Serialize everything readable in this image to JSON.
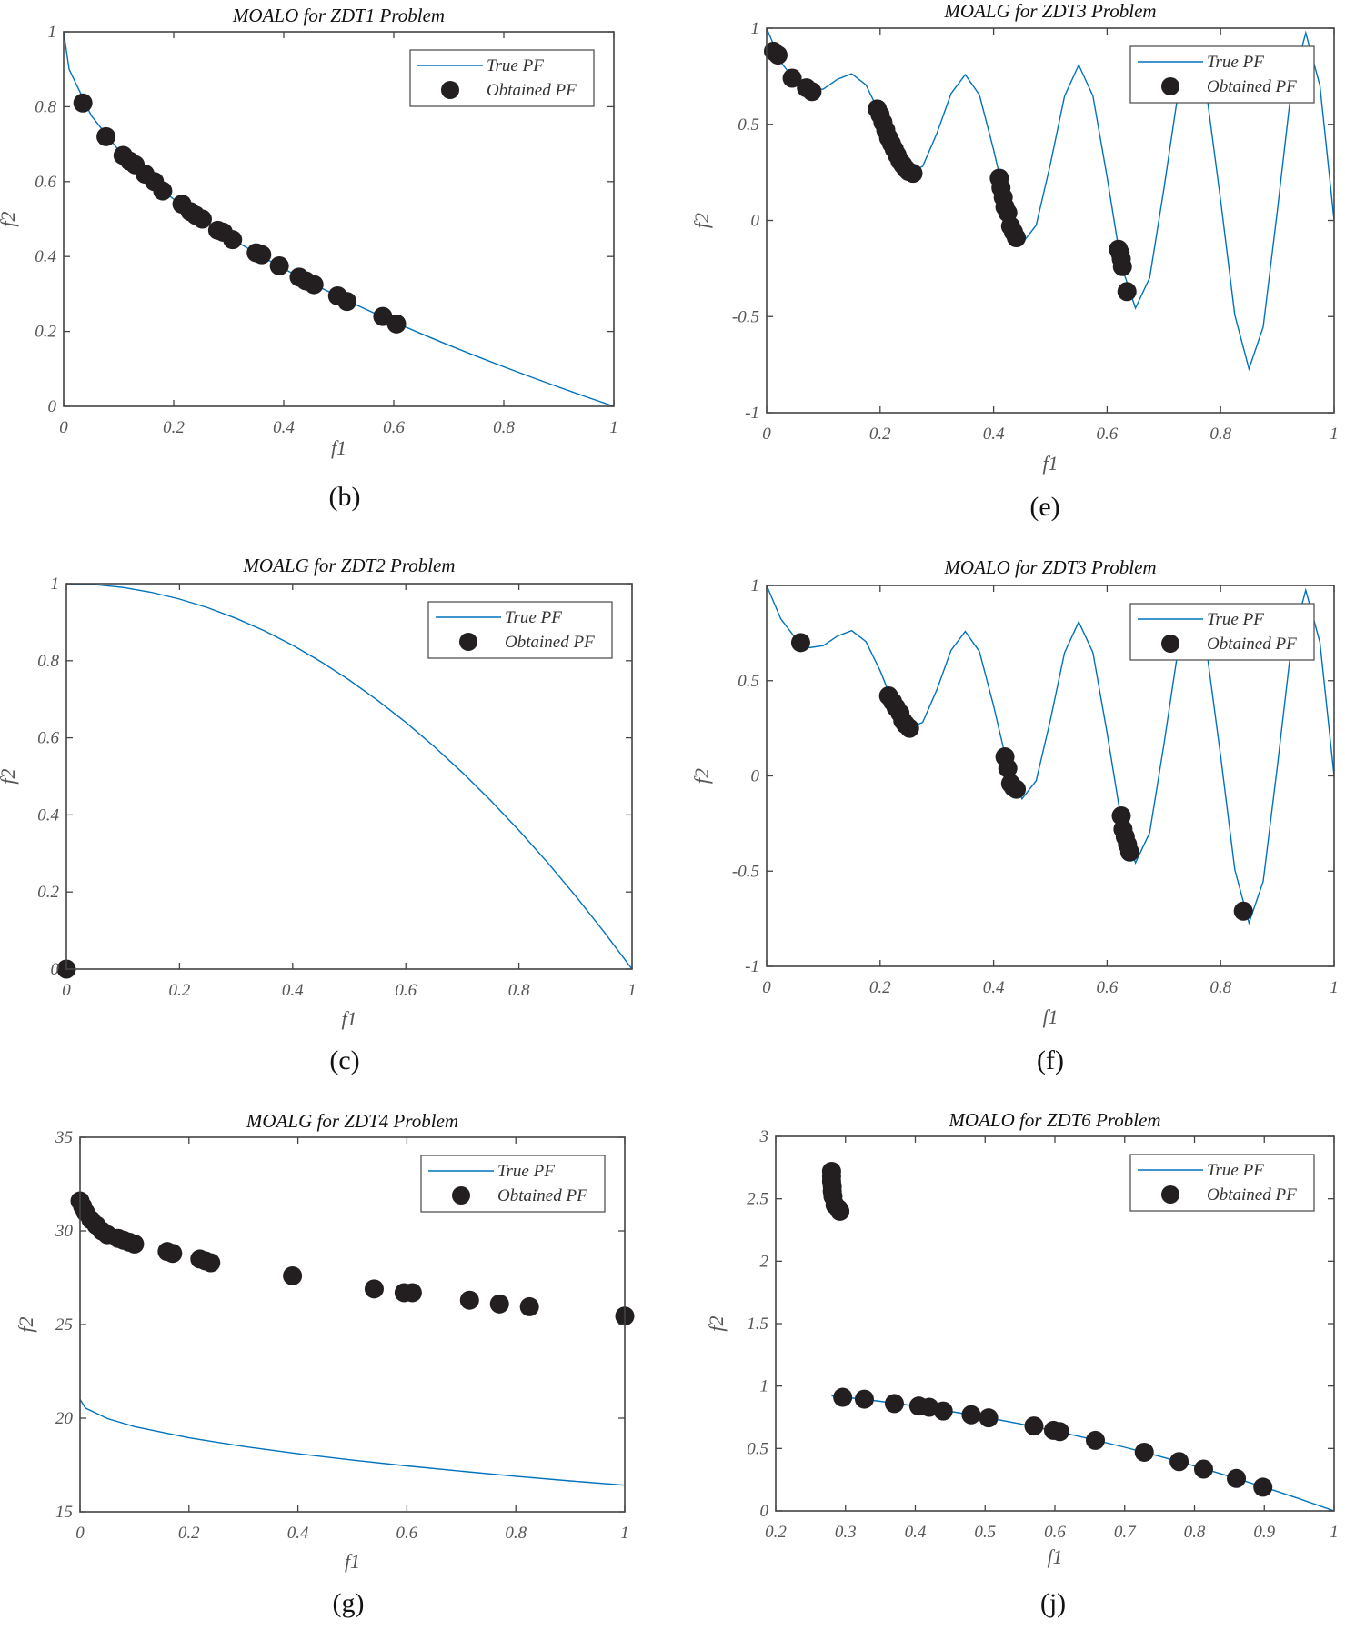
{
  "chart_data": [
    {
      "type": "line+scatter",
      "panel_label": "(b)",
      "title": "MOALO for ZDT1 Problem",
      "xlabel": "f1",
      "ylabel": "f2",
      "xlim": [
        0,
        1
      ],
      "ylim": [
        0,
        1
      ],
      "xtick_labels": [
        "0",
        "0.2",
        "0.4",
        "0.6",
        "0.8",
        "1"
      ],
      "ytick_labels": [
        "0",
        "0.2",
        "0.4",
        "0.6",
        "0.8",
        "1"
      ],
      "grid": false,
      "legend": {
        "position": "top-right",
        "entries": [
          "True PF",
          "Obtained PF"
        ]
      },
      "series": [
        {
          "name": "True PF",
          "kind": "line",
          "color": "#0072BD",
          "x": [
            0,
            0.01,
            0.05,
            0.1,
            0.15,
            0.2,
            0.25,
            0.3,
            0.35,
            0.4,
            0.45,
            0.5,
            0.55,
            0.6,
            0.65,
            0.7,
            0.75,
            0.8,
            0.85,
            0.9,
            0.95,
            1
          ],
          "y": [
            1,
            0.9,
            0.7764,
            0.6838,
            0.6127,
            0.5528,
            0.5,
            0.4523,
            0.4084,
            0.3675,
            0.3292,
            0.2929,
            0.2584,
            0.2254,
            0.1938,
            0.1633,
            0.134,
            0.1056,
            0.078,
            0.0513,
            0.0253,
            0
          ]
        },
        {
          "name": "Obtained PF",
          "kind": "scatter",
          "color": "#231F20",
          "x": [
            0.035,
            0.077,
            0.108,
            0.12,
            0.13,
            0.148,
            0.165,
            0.18,
            0.215,
            0.23,
            0.24,
            0.252,
            0.28,
            0.29,
            0.307,
            0.35,
            0.36,
            0.392,
            0.428,
            0.44,
            0.455,
            0.498,
            0.515,
            0.58,
            0.605
          ],
          "y": [
            0.81,
            0.72,
            0.67,
            0.655,
            0.645,
            0.62,
            0.6,
            0.575,
            0.54,
            0.52,
            0.51,
            0.5,
            0.47,
            0.465,
            0.445,
            0.41,
            0.405,
            0.375,
            0.345,
            0.335,
            0.325,
            0.295,
            0.28,
            0.24,
            0.22
          ]
        }
      ]
    },
    {
      "type": "line+scatter",
      "panel_label": "(e)",
      "title": "MOALG for ZDT3 Problem",
      "xlabel": "f1",
      "ylabel": "f2",
      "xlim": [
        0,
        1
      ],
      "ylim": [
        -1,
        1
      ],
      "xtick_labels": [
        "0",
        "0.2",
        "0.4",
        "0.6",
        "0.8",
        "1"
      ],
      "ytick_labels": [
        "-1",
        "-0.5",
        "0",
        "0.5",
        "1"
      ],
      "grid": false,
      "legend": {
        "position": "top-right",
        "entries": [
          "True PF",
          "Obtained PF"
        ]
      },
      "series": [
        {
          "name": "True PF",
          "kind": "line",
          "color": "#0072BD",
          "x": [
            0,
            0.025,
            0.05,
            0.075,
            0.1,
            0.125,
            0.15,
            0.175,
            0.2,
            0.225,
            0.25,
            0.275,
            0.3,
            0.325,
            0.35,
            0.375,
            0.4,
            0.425,
            0.45,
            0.475,
            0.5,
            0.525,
            0.55,
            0.575,
            0.6,
            0.625,
            0.65,
            0.675,
            0.7,
            0.725,
            0.75,
            0.775,
            0.8,
            0.825,
            0.85,
            0.875,
            0.9,
            0.925,
            0.95,
            0.975,
            1
          ],
          "y": [
            1,
            0.8242,
            0.7264,
            0.6731,
            0.6838,
            0.7348,
            0.7627,
            0.7054,
            0.5528,
            0.3666,
            0.25,
            0.2811,
            0.4523,
            0.6597,
            0.7584,
            0.6528,
            0.3675,
            0.0476,
            -0.1208,
            -0.0251,
            0.2929,
            0.6466,
            0.8084,
            0.6483,
            0.2254,
            -0.2325,
            -0.4562,
            -0.2989,
            0.1633,
            0.6611,
            0.884,
            0.6677,
            0.1056,
            -0.4917,
            -0.772,
            -0.5541,
            0.0513,
            0.6923,
            0.9753,
            0.702,
            0
          ]
        },
        {
          "name": "Obtained PF",
          "kind": "scatter",
          "color": "#231F20",
          "x": [
            0.012,
            0.02,
            0.045,
            0.07,
            0.08,
            0.195,
            0.2,
            0.205,
            0.21,
            0.215,
            0.22,
            0.225,
            0.23,
            0.235,
            0.24,
            0.245,
            0.25,
            0.258,
            0.41,
            0.413,
            0.417,
            0.42,
            0.425,
            0.43,
            0.435,
            0.44,
            0.62,
            0.623,
            0.625,
            0.627,
            0.635
          ],
          "y": [
            0.88,
            0.86,
            0.74,
            0.69,
            0.67,
            0.58,
            0.55,
            0.51,
            0.47,
            0.43,
            0.4,
            0.37,
            0.34,
            0.31,
            0.29,
            0.27,
            0.255,
            0.245,
            0.22,
            0.17,
            0.12,
            0.07,
            0.04,
            -0.03,
            -0.06,
            -0.09,
            -0.15,
            -0.17,
            -0.2,
            -0.24,
            -0.37
          ]
        }
      ]
    },
    {
      "type": "line+scatter",
      "panel_label": "(c)",
      "title": "MOALG for ZDT2 Problem",
      "xlabel": "f1",
      "ylabel": "f2",
      "xlim": [
        0,
        1
      ],
      "ylim": [
        0,
        1
      ],
      "xtick_labels": [
        "0",
        "0.2",
        "0.4",
        "0.6",
        "0.8",
        "1"
      ],
      "ytick_labels": [
        "0",
        "0.2",
        "0.4",
        "0.6",
        "0.8",
        "1"
      ],
      "grid": false,
      "legend": {
        "position": "top-right",
        "entries": [
          "True PF",
          "Obtained PF"
        ]
      },
      "series": [
        {
          "name": "True PF",
          "kind": "line",
          "color": "#0072BD",
          "x": [
            0,
            0.05,
            0.1,
            0.15,
            0.2,
            0.25,
            0.3,
            0.35,
            0.4,
            0.45,
            0.5,
            0.55,
            0.6,
            0.65,
            0.7,
            0.75,
            0.8,
            0.85,
            0.9,
            0.95,
            1
          ],
          "y": [
            1,
            0.9975,
            0.99,
            0.9775,
            0.96,
            0.9375,
            0.91,
            0.8775,
            0.84,
            0.7975,
            0.75,
            0.6975,
            0.64,
            0.5775,
            0.51,
            0.4375,
            0.36,
            0.2775,
            0.19,
            0.0975,
            0
          ]
        },
        {
          "name": "Obtained PF",
          "kind": "scatter",
          "color": "#231F20",
          "x": [
            0
          ],
          "y": [
            0
          ]
        }
      ]
    },
    {
      "type": "line+scatter",
      "panel_label": "(f)",
      "title": "MOALO for ZDT3 Problem",
      "xlabel": "f1",
      "ylabel": "f2",
      "xlim": [
        0,
        1
      ],
      "ylim": [
        -1,
        1
      ],
      "xtick_labels": [
        "0",
        "0.2",
        "0.4",
        "0.6",
        "0.8",
        "1"
      ],
      "ytick_labels": [
        "-1",
        "-0.5",
        "0",
        "0.5",
        "1"
      ],
      "grid": false,
      "legend": {
        "position": "top-right",
        "entries": [
          "True PF",
          "Obtained PF"
        ]
      },
      "series": [
        {
          "name": "True PF",
          "kind": "line",
          "color": "#0072BD",
          "x": [
            0,
            0.025,
            0.05,
            0.075,
            0.1,
            0.125,
            0.15,
            0.175,
            0.2,
            0.225,
            0.25,
            0.275,
            0.3,
            0.325,
            0.35,
            0.375,
            0.4,
            0.425,
            0.45,
            0.475,
            0.5,
            0.525,
            0.55,
            0.575,
            0.6,
            0.625,
            0.65,
            0.675,
            0.7,
            0.725,
            0.75,
            0.775,
            0.8,
            0.825,
            0.85,
            0.875,
            0.9,
            0.925,
            0.95,
            0.975,
            1
          ],
          "y": [
            1,
            0.8242,
            0.7264,
            0.6731,
            0.6838,
            0.7348,
            0.7627,
            0.7054,
            0.5528,
            0.3666,
            0.25,
            0.2811,
            0.4523,
            0.6597,
            0.7584,
            0.6528,
            0.3675,
            0.0476,
            -0.1208,
            -0.0251,
            0.2929,
            0.6466,
            0.8084,
            0.6483,
            0.2254,
            -0.2325,
            -0.4562,
            -0.2989,
            0.1633,
            0.6611,
            0.884,
            0.6677,
            0.1056,
            -0.4917,
            -0.772,
            -0.5541,
            0.0513,
            0.6923,
            0.9753,
            0.702,
            0
          ]
        },
        {
          "name": "Obtained PF",
          "kind": "scatter",
          "color": "#231F20",
          "x": [
            0.06,
            0.215,
            0.222,
            0.228,
            0.235,
            0.24,
            0.245,
            0.252,
            0.42,
            0.425,
            0.43,
            0.435,
            0.44,
            0.625,
            0.628,
            0.632,
            0.636,
            0.64,
            0.84
          ],
          "y": [
            0.7,
            0.42,
            0.39,
            0.36,
            0.33,
            0.29,
            0.27,
            0.25,
            0.1,
            0.04,
            -0.04,
            -0.06,
            -0.07,
            -0.21,
            -0.28,
            -0.32,
            -0.36,
            -0.4,
            -0.71
          ]
        }
      ]
    },
    {
      "type": "line+scatter",
      "panel_label": "(g)",
      "title": "MOALG for ZDT4 Problem",
      "xlabel": "f1",
      "ylabel": "f2",
      "xlim": [
        0,
        1
      ],
      "ylim": [
        15,
        35
      ],
      "xtick_labels": [
        "0",
        "0.2",
        "0.4",
        "0.6",
        "0.8",
        "1"
      ],
      "ytick_labels": [
        "15",
        "20",
        "25",
        "30",
        "35"
      ],
      "grid": false,
      "legend": {
        "position": "top-right",
        "entries": [
          "True PF",
          "Obtained PF"
        ]
      },
      "series": [
        {
          "name": "True PF",
          "kind": "line",
          "color": "#0072BD",
          "x": [
            0,
            0.01,
            0.05,
            0.1,
            0.2,
            0.3,
            0.4,
            0.5,
            0.6,
            0.7,
            0.8,
            0.9,
            1
          ],
          "y": [
            21,
            20.54,
            19.98,
            19.55,
            18.95,
            18.49,
            18.1,
            17.76,
            17.45,
            17.17,
            16.9,
            16.65,
            16.42
          ]
        },
        {
          "name": "Obtained PF",
          "kind": "scatter",
          "color": "#231F20",
          "x": [
            0,
            0.005,
            0.01,
            0.02,
            0.03,
            0.04,
            0.05,
            0.07,
            0.08,
            0.09,
            0.1,
            0.16,
            0.17,
            0.22,
            0.23,
            0.24,
            0.39,
            0.54,
            0.595,
            0.61,
            0.715,
            0.77,
            0.825,
            1
          ],
          "y": [
            31.6,
            31.3,
            31.0,
            30.6,
            30.3,
            30.0,
            29.8,
            29.6,
            29.5,
            29.4,
            29.3,
            28.9,
            28.8,
            28.5,
            28.4,
            28.3,
            27.6,
            26.9,
            26.7,
            26.7,
            26.3,
            26.1,
            25.95,
            25.45
          ]
        }
      ]
    },
    {
      "type": "line+scatter",
      "panel_label": "(j)",
      "title": "MOALO for ZDT6 Problem",
      "xlabel": "f1",
      "ylabel": "f2",
      "xlim": [
        0.2,
        1
      ],
      "ylim": [
        0,
        3
      ],
      "xtick_labels": [
        "0.2",
        "0.3",
        "0.4",
        "0.5",
        "0.6",
        "0.7",
        "0.8",
        "0.9",
        "1"
      ],
      "ytick_labels": [
        "0",
        "0.5",
        "1",
        "1.5",
        "2",
        "2.5",
        "3"
      ],
      "grid": false,
      "legend": {
        "position": "top-right",
        "entries": [
          "True PF",
          "Obtained PF"
        ]
      },
      "series": [
        {
          "name": "True PF",
          "kind": "line",
          "color": "#0072BD",
          "x": [
            0.28,
            0.3,
            0.35,
            0.4,
            0.45,
            0.5,
            0.55,
            0.6,
            0.65,
            0.7,
            0.75,
            0.8,
            0.85,
            0.9,
            0.95,
            1
          ],
          "y": [
            0.9216,
            0.91,
            0.8775,
            0.84,
            0.7975,
            0.75,
            0.6975,
            0.64,
            0.5775,
            0.51,
            0.4375,
            0.36,
            0.2775,
            0.19,
            0.0975,
            0
          ]
        },
        {
          "name": "Obtained PF",
          "kind": "scatter",
          "color": "#231F20",
          "x": [
            0.28,
            0.28,
            0.28,
            0.281,
            0.281,
            0.282,
            0.285,
            0.29,
            0.292,
            0.296,
            0.327,
            0.37,
            0.405,
            0.42,
            0.44,
            0.48,
            0.505,
            0.57,
            0.598,
            0.607,
            0.658,
            0.728,
            0.778,
            0.813,
            0.86,
            0.898
          ],
          "y": [
            2.72,
            2.68,
            2.64,
            2.6,
            2.56,
            2.52,
            2.45,
            2.42,
            2.4,
            0.91,
            0.895,
            0.86,
            0.84,
            0.83,
            0.8,
            0.77,
            0.745,
            0.68,
            0.645,
            0.635,
            0.565,
            0.47,
            0.395,
            0.335,
            0.26,
            0.19
          ]
        }
      ]
    }
  ]
}
